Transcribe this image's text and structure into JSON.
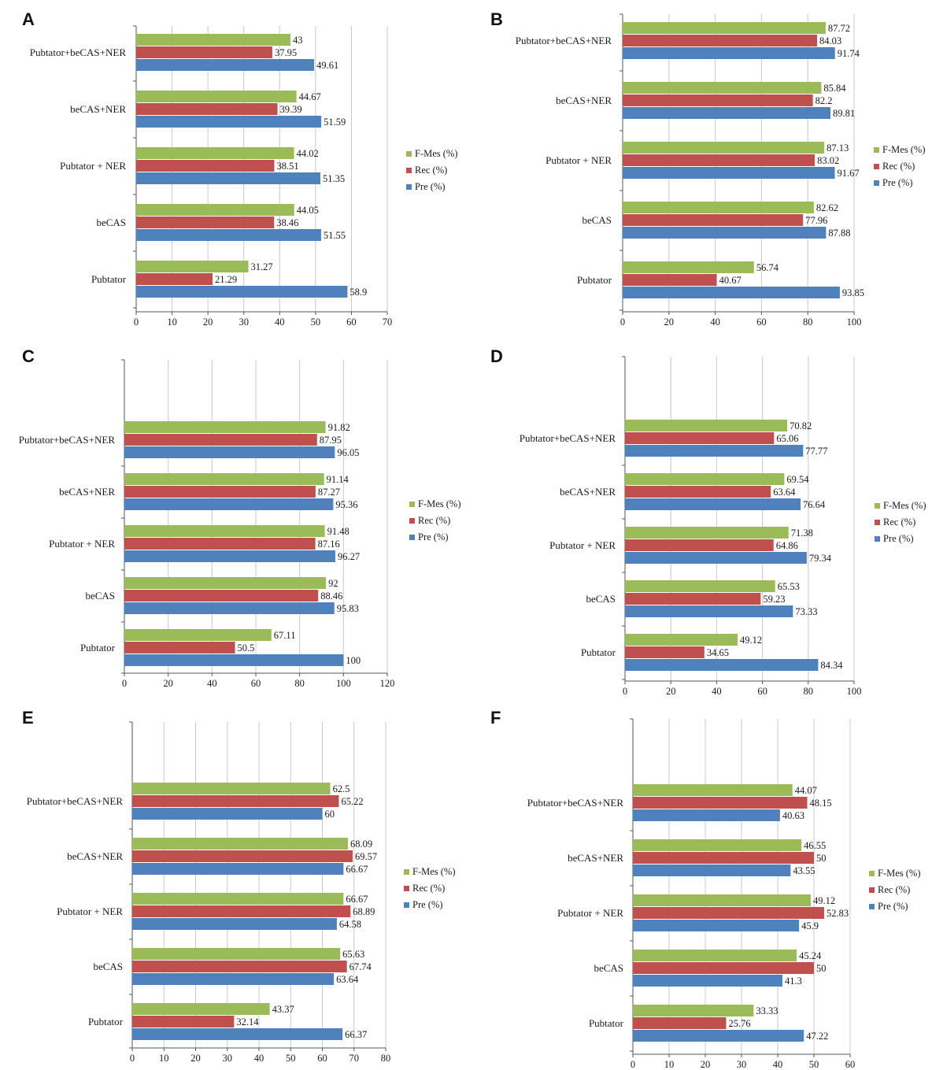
{
  "colors": {
    "F-Mes (%)": "#9bbb59",
    "Rec (%)": "#c0504d",
    "Pre (%)": "#4f81bd"
  },
  "chart_data": [
    {
      "panel": "A",
      "type": "bar",
      "orientation": "horizontal",
      "categories": [
        "Pubtator+beCAS+NER",
        "beCAS+NER",
        "Pubtator + NER",
        "beCAS",
        "Pubtator"
      ],
      "series": [
        {
          "name": "F-Mes (%)",
          "values": [
            43,
            44.67,
            44.02,
            44.05,
            31.27
          ],
          "labels": [
            "43",
            "44.67",
            "44.02",
            "44.05",
            "31.27"
          ]
        },
        {
          "name": "Rec (%)",
          "values": [
            37.95,
            39.39,
            38.51,
            38.46,
            21.29
          ],
          "labels": [
            "37.95",
            "39.39",
            "38.51",
            "38.46",
            "21.29"
          ]
        },
        {
          "name": "Pre (%)",
          "values": [
            49.61,
            51.59,
            51.35,
            51.55,
            58.9
          ],
          "labels": [
            "49.61",
            "51.59",
            "51.35",
            "51.55",
            "58.9"
          ]
        }
      ],
      "xlim": [
        0,
        70
      ],
      "xticks": [
        "0",
        "10",
        "20",
        "30",
        "40",
        "50",
        "60",
        "70"
      ],
      "grid": true,
      "legend": "right"
    },
    {
      "panel": "B",
      "type": "bar",
      "orientation": "horizontal",
      "categories": [
        "Pubtator+beCAS+NER",
        "beCAS+NER",
        "Pubtator + NER",
        "beCAS",
        "Pubtator"
      ],
      "series": [
        {
          "name": "F-Mes (%)",
          "values": [
            87.72,
            85.84,
            87.13,
            82.62,
            56.74
          ],
          "labels": [
            "87.72",
            "85.84",
            "87.13",
            "82.62",
            "56.74"
          ]
        },
        {
          "name": "Rec (%)",
          "values": [
            84.03,
            82.2,
            83.02,
            77.96,
            40.67
          ],
          "labels": [
            "84.03",
            "82.2",
            "83.02",
            "77.96",
            "40.67"
          ]
        },
        {
          "name": "Pre (%)",
          "values": [
            91.74,
            89.81,
            91.67,
            87.88,
            93.85
          ],
          "labels": [
            "91.74",
            "89.81",
            "91.67",
            "87.88",
            "93.85"
          ]
        }
      ],
      "xlim": [
        0,
        100
      ],
      "xticks": [
        "0",
        "20",
        "40",
        "60",
        "80",
        "100"
      ],
      "grid": true,
      "legend": "right"
    },
    {
      "panel": "C",
      "type": "bar",
      "orientation": "horizontal",
      "categories": [
        "Pubtator+beCAS+NER",
        "beCAS+NER",
        "Pubtator + NER",
        "beCAS",
        "Pubtator"
      ],
      "series": [
        {
          "name": "F-Mes (%)",
          "values": [
            91.82,
            91.14,
            91.48,
            92,
            67.11
          ],
          "labels": [
            "91.82",
            "91.14",
            "91.48",
            "92",
            "67.11"
          ]
        },
        {
          "name": "Rec (%)",
          "values": [
            87.95,
            87.27,
            87.16,
            88.46,
            50.5
          ],
          "labels": [
            "87.95",
            "87.27",
            "87.16",
            "88.46",
            "50.5"
          ]
        },
        {
          "name": "Pre (%)",
          "values": [
            96.05,
            95.36,
            96.27,
            95.83,
            100
          ],
          "labels": [
            "96.05",
            "95.36",
            "96.27",
            "95.83",
            "100"
          ]
        }
      ],
      "xlim": [
        0,
        120
      ],
      "xticks": [
        "0",
        "20",
        "40",
        "60",
        "80",
        "100",
        "120"
      ],
      "grid": true,
      "legend": "right"
    },
    {
      "panel": "D",
      "type": "bar",
      "orientation": "horizontal",
      "categories": [
        "Pubtator+beCAS+NER",
        "beCAS+NER",
        "Pubtator + NER",
        "beCAS",
        "Pubtator"
      ],
      "series": [
        {
          "name": "F-Mes (%)",
          "values": [
            70.82,
            69.54,
            71.38,
            65.53,
            49.12
          ],
          "labels": [
            "70.82",
            "69.54",
            "71.38",
            "65.53",
            "49.12"
          ]
        },
        {
          "name": "Rec (%)",
          "values": [
            65.06,
            63.64,
            64.86,
            59.23,
            34.65
          ],
          "labels": [
            "65.06",
            "63.64",
            "64.86",
            "59.23",
            "34.65"
          ]
        },
        {
          "name": "Pre (%)",
          "values": [
            77.77,
            76.64,
            79.34,
            73.33,
            84.34
          ],
          "labels": [
            "77.77",
            "76.64",
            "79.34",
            "73.33",
            "84.34"
          ]
        }
      ],
      "xlim": [
        0,
        100
      ],
      "xticks": [
        "0",
        "20",
        "40",
        "60",
        "80",
        "100"
      ],
      "grid": true,
      "legend": "right"
    },
    {
      "panel": "E",
      "type": "bar",
      "orientation": "horizontal",
      "categories": [
        "Pubtator+beCAS+NER",
        "beCAS+NER",
        "Pubtator + NER",
        "beCAS",
        "Pubtator"
      ],
      "series": [
        {
          "name": "F-Mes (%)",
          "values": [
            62.5,
            68.09,
            66.67,
            65.63,
            43.37
          ],
          "labels": [
            "62.5",
            "68.09",
            "66.67",
            "65.63",
            "43.37"
          ]
        },
        {
          "name": "Rec (%)",
          "values": [
            65.22,
            69.57,
            68.89,
            67.74,
            32.14
          ],
          "labels": [
            "65.22",
            "69.57",
            "68.89",
            "67.74",
            "32.14"
          ]
        },
        {
          "name": "Pre (%)",
          "values": [
            60,
            66.67,
            64.58,
            63.64,
            66.37
          ],
          "labels": [
            "60",
            "66.67",
            "64.58",
            "63.64",
            "66.37"
          ]
        }
      ],
      "xlim": [
        0,
        80
      ],
      "xticks": [
        "0",
        "10",
        "20",
        "30",
        "40",
        "50",
        "60",
        "70",
        "80"
      ],
      "grid": true,
      "legend": "right"
    },
    {
      "panel": "F",
      "type": "bar",
      "orientation": "horizontal",
      "categories": [
        "Pubtator+beCAS+NER",
        "beCAS+NER",
        "Pubtator + NER",
        "beCAS",
        "Pubtator"
      ],
      "series": [
        {
          "name": "F-Mes (%)",
          "values": [
            44.07,
            46.55,
            49.12,
            45.24,
            33.33
          ],
          "labels": [
            "44.07",
            "46.55",
            "49.12",
            "45.24",
            "33.33"
          ]
        },
        {
          "name": "Rec (%)",
          "values": [
            48.15,
            50,
            52.83,
            50,
            25.76
          ],
          "labels": [
            "48.15",
            "50",
            "52.83",
            "50",
            "25.76"
          ]
        },
        {
          "name": "Pre (%)",
          "values": [
            40.63,
            43.55,
            45.9,
            41.3,
            47.22
          ],
          "labels": [
            "40.63",
            "43.55",
            "45.9",
            "41.3",
            "47.22"
          ]
        }
      ],
      "xlim": [
        0,
        60
      ],
      "xticks": [
        "0",
        "10",
        "20",
        "30",
        "40",
        "50",
        "60"
      ],
      "grid": true,
      "legend": "right"
    }
  ]
}
